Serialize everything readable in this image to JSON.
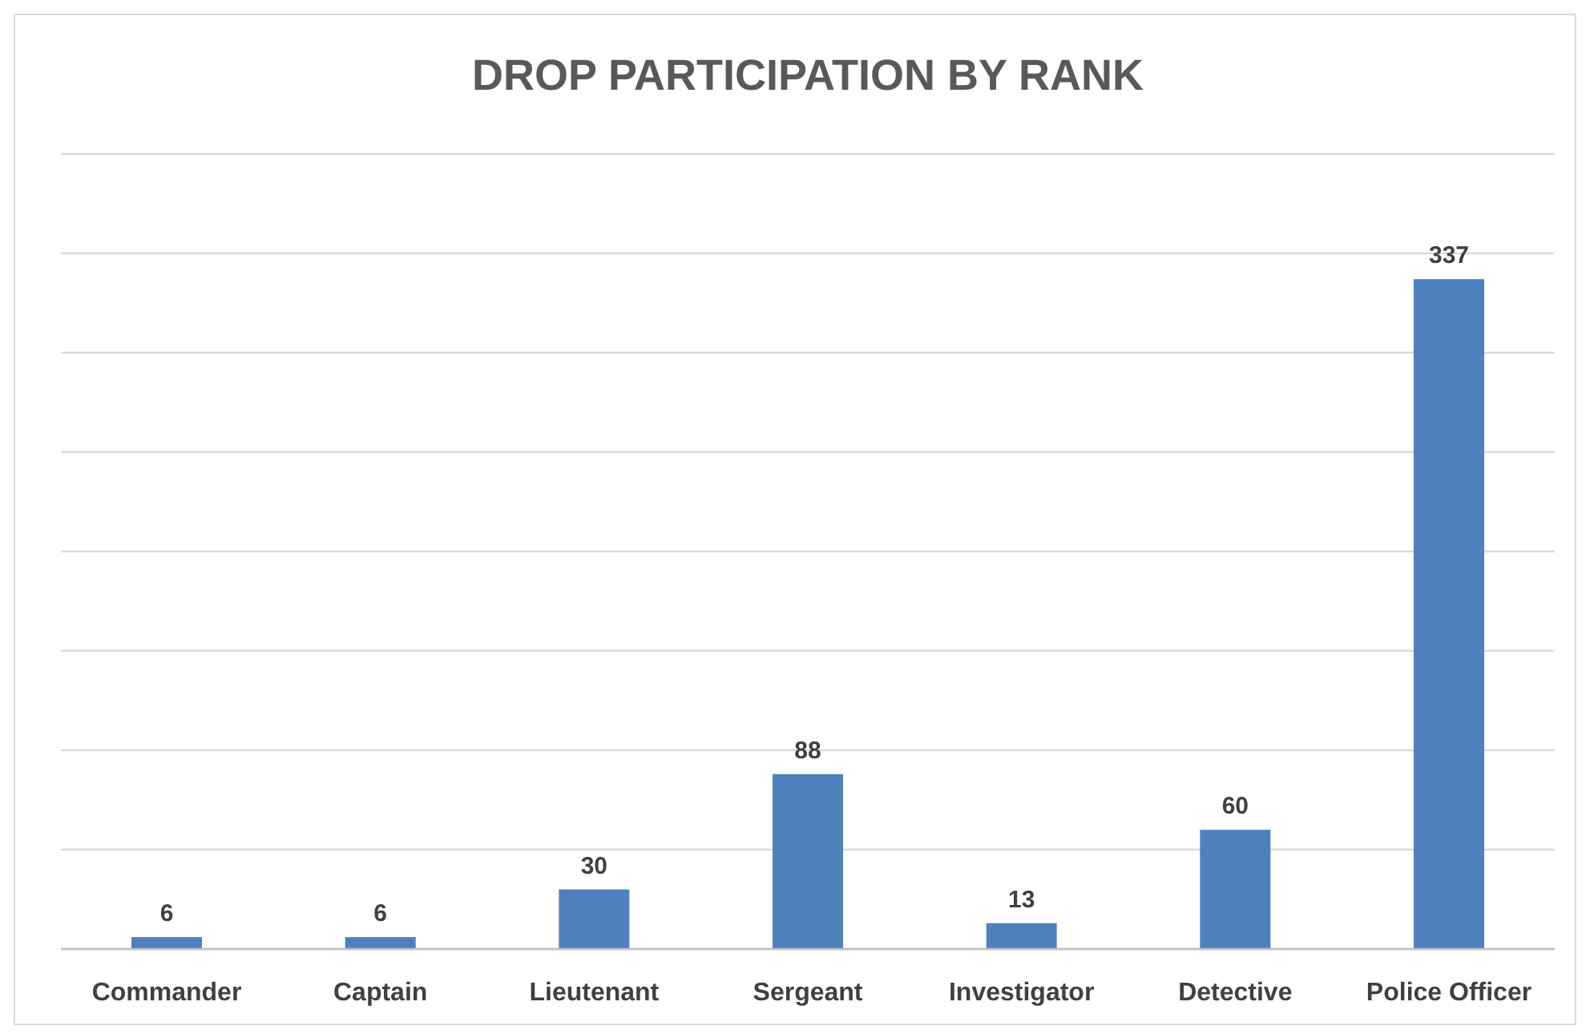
{
  "chart_data": {
    "type": "bar",
    "title": "DROP PARTICIPATION BY RANK",
    "categories": [
      "Commander",
      "Captain",
      "Lieutenant",
      "Sergeant",
      "Investigator",
      "Detective",
      "Police Officer"
    ],
    "values": [
      6,
      6,
      30,
      88,
      13,
      60,
      337
    ],
    "color": "#4e81bd",
    "data_labels": true,
    "ylim": [
      0,
      400
    ],
    "yticks": [
      {
        "value": 0,
        "label": null
      },
      {
        "value": 50,
        "label": null
      },
      {
        "value": 100,
        "label": null
      },
      {
        "value": 150,
        "label": null
      },
      {
        "value": 200,
        "label": null
      },
      {
        "value": 250,
        "label": null
      },
      {
        "value": 300,
        "label": null
      },
      {
        "value": 350,
        "label": null
      },
      {
        "value": 400,
        "label": null
      }
    ],
    "grid": "y",
    "tick_labels": "x"
  }
}
